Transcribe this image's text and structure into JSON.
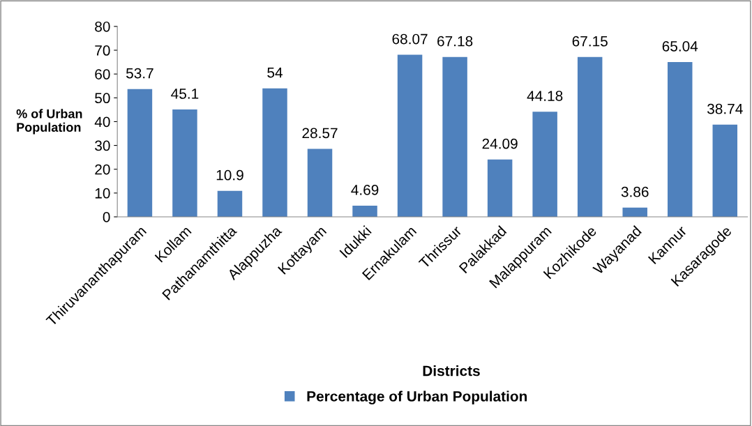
{
  "chart_data": {
    "type": "bar",
    "categories": [
      "Thiruvananthapuram",
      "Kollam",
      "Pathanamthitta",
      "Alappuzha",
      "Kottayam",
      "Idukki",
      "Ernakulam",
      "Thrissur",
      "Palakkad",
      "Malappuram",
      "Kozhikode",
      "Wayanad",
      "Kannur",
      "Kasaragode"
    ],
    "series": [
      {
        "name": "Percentage of Urban Population",
        "color": "#4f81bd",
        "values": [
          53.7,
          45.1,
          10.9,
          54,
          28.57,
          4.69,
          68.07,
          67.18,
          24.09,
          44.18,
          67.15,
          3.86,
          65.04,
          38.74
        ]
      }
    ],
    "xlabel": "Districts",
    "ylabel": "% of Urban Population",
    "ylim": [
      0,
      80
    ],
    "yticks": [
      0,
      10,
      20,
      30,
      40,
      50,
      60,
      70,
      80
    ],
    "data_labels": true,
    "grid": false,
    "legend": "bottom"
  }
}
